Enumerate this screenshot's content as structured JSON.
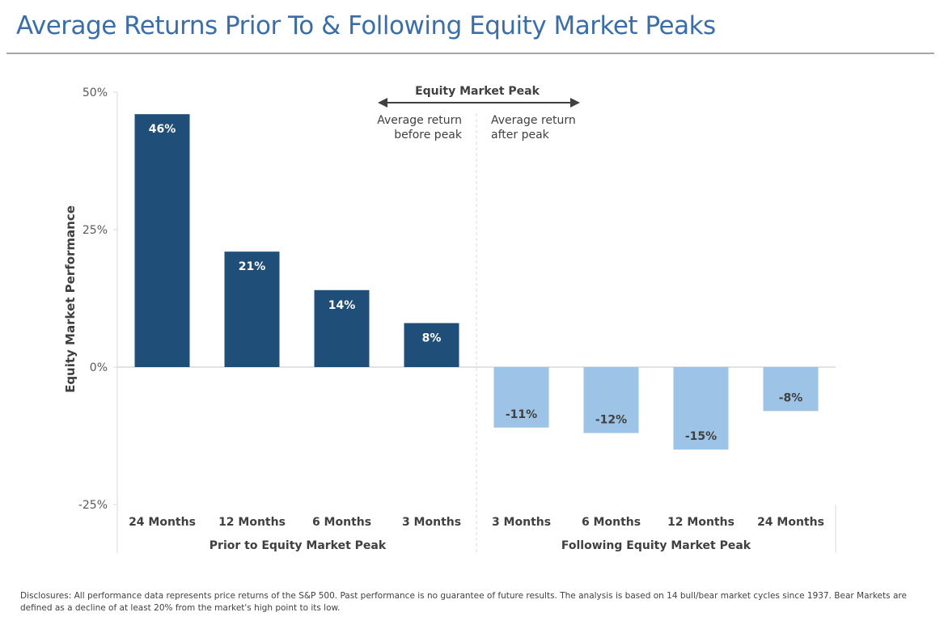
{
  "header": {
    "title": "Average Returns Prior To & Following Equity Market Peaks"
  },
  "chart_data": {
    "type": "bar",
    "title": "Average Returns Prior To & Following Equity Market Peaks",
    "xlabel": "",
    "ylabel": "Equity Market Performance",
    "ylim": [
      -25,
      50
    ],
    "yticks": [
      50,
      25,
      0,
      -25
    ],
    "ytick_labels": [
      "50%",
      "25%",
      "0%",
      "-25%"
    ],
    "grid": false,
    "categories": [
      "24 Months",
      "12 Months",
      "6 Months",
      "3 Months",
      "3 Months",
      "6 Months",
      "12 Months",
      "24 Months"
    ],
    "values": [
      46,
      21,
      14,
      8,
      -11,
      -12,
      -15,
      -8
    ],
    "data_labels": [
      "46%",
      "21%",
      "14%",
      "8%",
      "-11%",
      "-12%",
      "-15%",
      "-8%"
    ],
    "groups": [
      {
        "name": "Prior to Equity Market Peak",
        "color": "#1f4e79",
        "label_color": "#ffffff",
        "indices": [
          0,
          1,
          2,
          3
        ]
      },
      {
        "name": "Following Equity Market Peak",
        "color": "#9dc3e6",
        "label_color": "#404040",
        "indices": [
          4,
          5,
          6,
          7
        ]
      }
    ],
    "annotations": {
      "peak_title": "Equity Market Peak",
      "before_line1": "Average return",
      "before_line2": "before peak",
      "after_line1": "Average return",
      "after_line2": "after peak"
    }
  },
  "footer": {
    "disclosure": "Disclosures: All performance data represents price returns of the S&P 500. Past performance is no guarantee of future results. The analysis is based on 14 bull/bear market cycles since 1937. Bear Markets are defined as a decline of at least 20% from the market's high point to its low."
  }
}
